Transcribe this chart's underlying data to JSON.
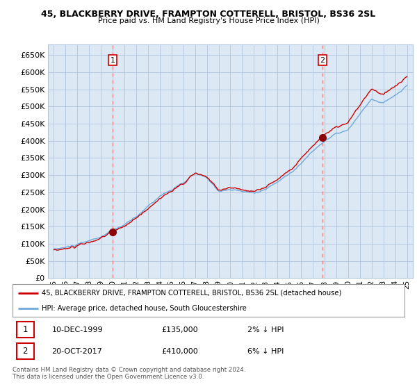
{
  "title": "45, BLACKBERRY DRIVE, FRAMPTON COTTERELL, BRISTOL, BS36 2SL",
  "subtitle": "Price paid vs. HM Land Registry's House Price Index (HPI)",
  "legend_line1": "45, BLACKBERRY DRIVE, FRAMPTON COTTERELL, BRISTOL, BS36 2SL (detached house)",
  "legend_line2": "HPI: Average price, detached house, South Gloucestershire",
  "sale1_date": "10-DEC-1999",
  "sale1_price": "£135,000",
  "sale1_hpi": "2% ↓ HPI",
  "sale2_date": "20-OCT-2017",
  "sale2_price": "£410,000",
  "sale2_hpi": "6% ↓ HPI",
  "footer": "Contains HM Land Registry data © Crown copyright and database right 2024.\nThis data is licensed under the Open Government Licence v3.0.",
  "hpi_color": "#6fa8dc",
  "price_color": "#cc0000",
  "marker_color": "#8b0000",
  "sale1_year": 2000.0,
  "sale2_year": 2017.83,
  "sale1_price_val": 135000,
  "sale2_price_val": 410000,
  "ylim_min": 0,
  "ylim_max": 680000,
  "yticks": [
    0,
    50000,
    100000,
    150000,
    200000,
    250000,
    300000,
    350000,
    400000,
    450000,
    500000,
    550000,
    600000,
    650000
  ],
  "plot_bg_color": "#dce9f5",
  "background_color": "#ffffff",
  "grid_color": "#b0c4de",
  "xmin": 1994.5,
  "xmax": 2025.5
}
